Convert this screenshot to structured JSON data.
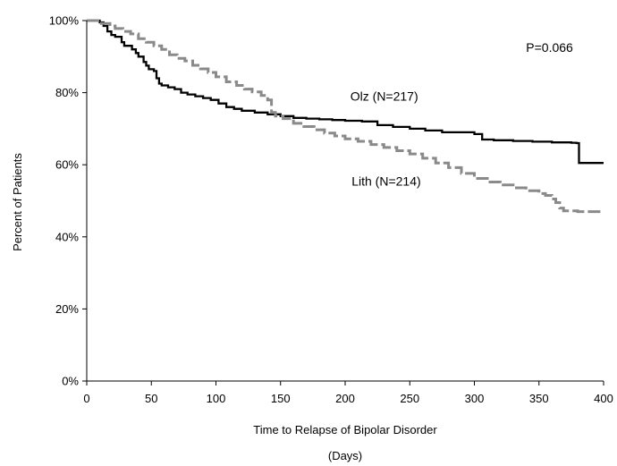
{
  "chart_data": {
    "type": "line",
    "title": "",
    "xlabel": "Time to Relapse of Bipolar Disorder",
    "xlabel_unit": "(Days)",
    "ylabel": "Percent of Patients",
    "xlim": [
      0,
      400
    ],
    "ylim": [
      0,
      100
    ],
    "x_ticks": [
      0,
      50,
      100,
      150,
      200,
      250,
      300,
      350,
      400
    ],
    "y_ticks": [
      0,
      20,
      40,
      60,
      80,
      100
    ],
    "y_tick_labels": [
      "0%",
      "20%",
      "40%",
      "60%",
      "80%",
      "100%"
    ],
    "grid": false,
    "legend": "none",
    "step": true,
    "annotations": [
      {
        "text": "P=0.066",
        "x": 340,
        "y": 92.5
      },
      {
        "text": "Olz (N=217)",
        "x": 204,
        "y": 79
      },
      {
        "text": "Lith (N=214)",
        "x": 205,
        "y": 55.5
      }
    ],
    "series": [
      {
        "label": "Olz (N=217)",
        "color": "#000000",
        "style": "solid",
        "x": [
          0,
          10,
          13,
          16,
          19,
          22,
          27,
          29,
          35,
          38,
          40,
          44,
          46,
          48,
          52,
          54,
          56,
          58,
          63,
          68,
          73,
          78,
          84,
          90,
          96,
          102,
          108,
          114,
          120,
          130,
          140,
          150,
          160,
          170,
          180,
          190,
          200,
          213,
          225,
          237,
          250,
          262,
          275,
          300,
          306,
          315,
          330,
          345,
          360,
          375,
          379,
          381,
          400
        ],
        "y": [
          100,
          99.5,
          98.5,
          97,
          96,
          95.5,
          94,
          93,
          92,
          91,
          90,
          88.5,
          87.5,
          86.5,
          86,
          84,
          82.5,
          82,
          81.5,
          81,
          80,
          79.5,
          79,
          78.5,
          78,
          77,
          76,
          75.5,
          75,
          74.5,
          74,
          73.5,
          73,
          72.8,
          72.6,
          72.4,
          72.2,
          72,
          71,
          70.5,
          70,
          69.5,
          69,
          68.5,
          67,
          66.8,
          66.6,
          66.4,
          66.2,
          66.1,
          66,
          60.5,
          60.5
        ]
      },
      {
        "label": "Lith (N=214)",
        "color": "#8a8a8a",
        "style": "dash",
        "x": [
          0,
          10,
          18,
          22,
          28,
          34,
          40,
          46,
          52,
          58,
          64,
          70,
          76,
          82,
          88,
          94,
          100,
          108,
          116,
          122,
          128,
          135,
          140,
          143,
          146,
          152,
          160,
          168,
          176,
          184,
          192,
          200,
          210,
          220,
          230,
          240,
          250,
          260,
          270,
          280,
          290,
          300,
          310,
          320,
          330,
          340,
          350,
          355,
          360,
          363,
          366,
          369,
          380,
          400
        ],
        "y": [
          100,
          99.2,
          98.5,
          97.8,
          97,
          96.3,
          95,
          94,
          93,
          92,
          90.5,
          89.5,
          88.8,
          87.6,
          86.6,
          85.6,
          84.4,
          83,
          82,
          81,
          80.2,
          79.2,
          78,
          74.5,
          73.5,
          72.8,
          71.5,
          70.6,
          69.7,
          68.8,
          68,
          67.2,
          66.5,
          65.6,
          64.8,
          63.9,
          63,
          61.8,
          60.5,
          59.2,
          57.6,
          56.2,
          55.2,
          54.4,
          53.6,
          52.8,
          52,
          51.5,
          50.5,
          49.5,
          48,
          47.2,
          47,
          47
        ]
      }
    ]
  }
}
